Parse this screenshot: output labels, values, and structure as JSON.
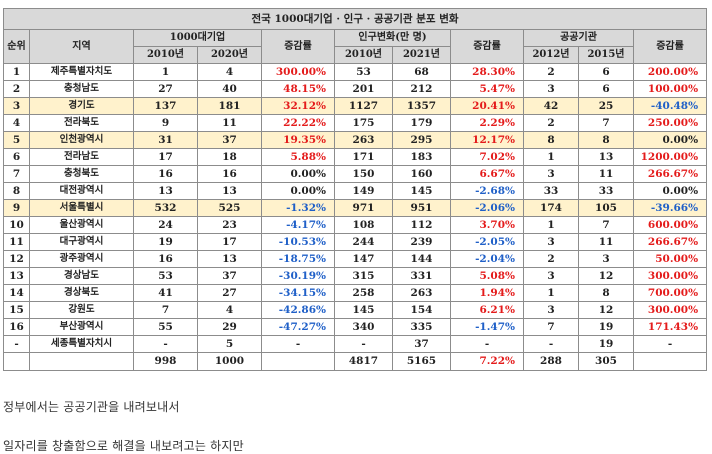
{
  "table": {
    "title": "전국 1000대기업 · 인구 · 공공기관 분포 변화",
    "headers": {
      "rank": "순위",
      "region": "지역",
      "group_companies": "1000대기업",
      "group_population": "인구변화(만 명)",
      "group_public": "공공기관",
      "y2010": "2010년",
      "y2020": "2020년",
      "change": "증감률",
      "p2010": "2010년",
      "p2021": "2021년",
      "change2": "증감률",
      "g2012": "2012년",
      "g2015": "2015년",
      "change3": "증감률"
    },
    "rows": [
      {
        "rank": "1",
        "region": "제주특별자치도",
        "c2010": "1",
        "c2020": "4",
        "cchg": "300.00%",
        "cchg_sign": "pos",
        "p2010": "53",
        "p2021": "68",
        "pchg": "28.30%",
        "pchg_sign": "pos",
        "g2012": "2",
        "g2015": "6",
        "gchg": "200.00%",
        "gchg_sign": "pos",
        "hl": false
      },
      {
        "rank": "2",
        "region": "충청남도",
        "c2010": "27",
        "c2020": "40",
        "cchg": "48.15%",
        "cchg_sign": "pos",
        "p2010": "201",
        "p2021": "212",
        "pchg": "5.47%",
        "pchg_sign": "pos",
        "g2012": "3",
        "g2015": "6",
        "gchg": "100.00%",
        "gchg_sign": "pos",
        "hl": false
      },
      {
        "rank": "3",
        "region": "경기도",
        "c2010": "137",
        "c2020": "181",
        "cchg": "32.12%",
        "cchg_sign": "pos",
        "p2010": "1127",
        "p2021": "1357",
        "pchg": "20.41%",
        "pchg_sign": "pos",
        "g2012": "42",
        "g2015": "25",
        "gchg": "-40.48%",
        "gchg_sign": "neg",
        "hl": true
      },
      {
        "rank": "4",
        "region": "전라북도",
        "c2010": "9",
        "c2020": "11",
        "cchg": "22.22%",
        "cchg_sign": "pos",
        "p2010": "175",
        "p2021": "179",
        "pchg": "2.29%",
        "pchg_sign": "pos",
        "g2012": "2",
        "g2015": "7",
        "gchg": "250.00%",
        "gchg_sign": "pos",
        "hl": false
      },
      {
        "rank": "5",
        "region": "인천광역시",
        "c2010": "31",
        "c2020": "37",
        "cchg": "19.35%",
        "cchg_sign": "pos",
        "p2010": "263",
        "p2021": "295",
        "pchg": "12.17%",
        "pchg_sign": "pos",
        "g2012": "8",
        "g2015": "8",
        "gchg": "0.00%",
        "gchg_sign": "zero",
        "hl": true
      },
      {
        "rank": "6",
        "region": "전라남도",
        "c2010": "17",
        "c2020": "18",
        "cchg": "5.88%",
        "cchg_sign": "pos",
        "p2010": "171",
        "p2021": "183",
        "pchg": "7.02%",
        "pchg_sign": "pos",
        "g2012": "1",
        "g2015": "13",
        "gchg": "1200.00%",
        "gchg_sign": "pos",
        "hl": false
      },
      {
        "rank": "7",
        "region": "충청북도",
        "c2010": "16",
        "c2020": "16",
        "cchg": "0.00%",
        "cchg_sign": "zero",
        "p2010": "150",
        "p2021": "160",
        "pchg": "6.67%",
        "pchg_sign": "pos",
        "g2012": "3",
        "g2015": "11",
        "gchg": "266.67%",
        "gchg_sign": "pos",
        "hl": false
      },
      {
        "rank": "8",
        "region": "대전광역시",
        "c2010": "13",
        "c2020": "13",
        "cchg": "0.00%",
        "cchg_sign": "zero",
        "p2010": "149",
        "p2021": "145",
        "pchg": "-2.68%",
        "pchg_sign": "neg",
        "g2012": "33",
        "g2015": "33",
        "gchg": "0.00%",
        "gchg_sign": "zero",
        "hl": false
      },
      {
        "rank": "9",
        "region": "서울특별시",
        "c2010": "532",
        "c2020": "525",
        "cchg": "-1.32%",
        "cchg_sign": "neg",
        "p2010": "971",
        "p2021": "951",
        "pchg": "-2.06%",
        "pchg_sign": "neg",
        "g2012": "174",
        "g2015": "105",
        "gchg": "-39.66%",
        "gchg_sign": "neg",
        "hl": true
      },
      {
        "rank": "10",
        "region": "울산광역시",
        "c2010": "24",
        "c2020": "23",
        "cchg": "-4.17%",
        "cchg_sign": "neg",
        "p2010": "108",
        "p2021": "112",
        "pchg": "3.70%",
        "pchg_sign": "pos",
        "g2012": "1",
        "g2015": "7",
        "gchg": "600.00%",
        "gchg_sign": "pos",
        "hl": false
      },
      {
        "rank": "11",
        "region": "대구광역시",
        "c2010": "19",
        "c2020": "17",
        "cchg": "-10.53%",
        "cchg_sign": "neg",
        "p2010": "244",
        "p2021": "239",
        "pchg": "-2.05%",
        "pchg_sign": "neg",
        "g2012": "3",
        "g2015": "11",
        "gchg": "266.67%",
        "gchg_sign": "pos",
        "hl": false
      },
      {
        "rank": "12",
        "region": "광주광역시",
        "c2010": "16",
        "c2020": "13",
        "cchg": "-18.75%",
        "cchg_sign": "neg",
        "p2010": "147",
        "p2021": "144",
        "pchg": "-2.04%",
        "pchg_sign": "neg",
        "g2012": "2",
        "g2015": "3",
        "gchg": "50.00%",
        "gchg_sign": "pos",
        "hl": false
      },
      {
        "rank": "13",
        "region": "경상남도",
        "c2010": "53",
        "c2020": "37",
        "cchg": "-30.19%",
        "cchg_sign": "neg",
        "p2010": "315",
        "p2021": "331",
        "pchg": "5.08%",
        "pchg_sign": "pos",
        "g2012": "3",
        "g2015": "12",
        "gchg": "300.00%",
        "gchg_sign": "pos",
        "hl": false
      },
      {
        "rank": "14",
        "region": "경상북도",
        "c2010": "41",
        "c2020": "27",
        "cchg": "-34.15%",
        "cchg_sign": "neg",
        "p2010": "258",
        "p2021": "263",
        "pchg": "1.94%",
        "pchg_sign": "pos",
        "g2012": "1",
        "g2015": "8",
        "gchg": "700.00%",
        "gchg_sign": "pos",
        "hl": false
      },
      {
        "rank": "15",
        "region": "강원도",
        "c2010": "7",
        "c2020": "4",
        "cchg": "-42.86%",
        "cchg_sign": "neg",
        "p2010": "145",
        "p2021": "154",
        "pchg": "6.21%",
        "pchg_sign": "pos",
        "g2012": "3",
        "g2015": "12",
        "gchg": "300.00%",
        "gchg_sign": "pos",
        "hl": false
      },
      {
        "rank": "16",
        "region": "부산광역시",
        "c2010": "55",
        "c2020": "29",
        "cchg": "-47.27%",
        "cchg_sign": "neg",
        "p2010": "340",
        "p2021": "335",
        "pchg": "-1.47%",
        "pchg_sign": "neg",
        "g2012": "7",
        "g2015": "19",
        "gchg": "171.43%",
        "gchg_sign": "pos",
        "hl": false
      },
      {
        "rank": "-",
        "region": "세종특별자치시",
        "c2010": "-",
        "c2020": "5",
        "cchg": "-",
        "cchg_sign": "dash",
        "p2010": "-",
        "p2021": "37",
        "pchg": "-",
        "pchg_sign": "dash",
        "g2012": "-",
        "g2015": "19",
        "gchg": "-",
        "gchg_sign": "dash",
        "hl": false
      }
    ],
    "total": {
      "rank": "",
      "region": "",
      "c2010": "998",
      "c2020": "1000",
      "cchg": "",
      "cchg_sign": "dash",
      "p2010": "4817",
      "p2021": "5165",
      "pchg": "7.22%",
      "pchg_sign": "pos",
      "g2012": "288",
      "g2015": "305",
      "gchg": "",
      "gchg_sign": "dash"
    }
  },
  "paragraphs": [
    "정부에서는 공공기관을 내려보내서",
    "일자리를 창출함으로 해결을 내보려고는 하지만"
  ]
}
